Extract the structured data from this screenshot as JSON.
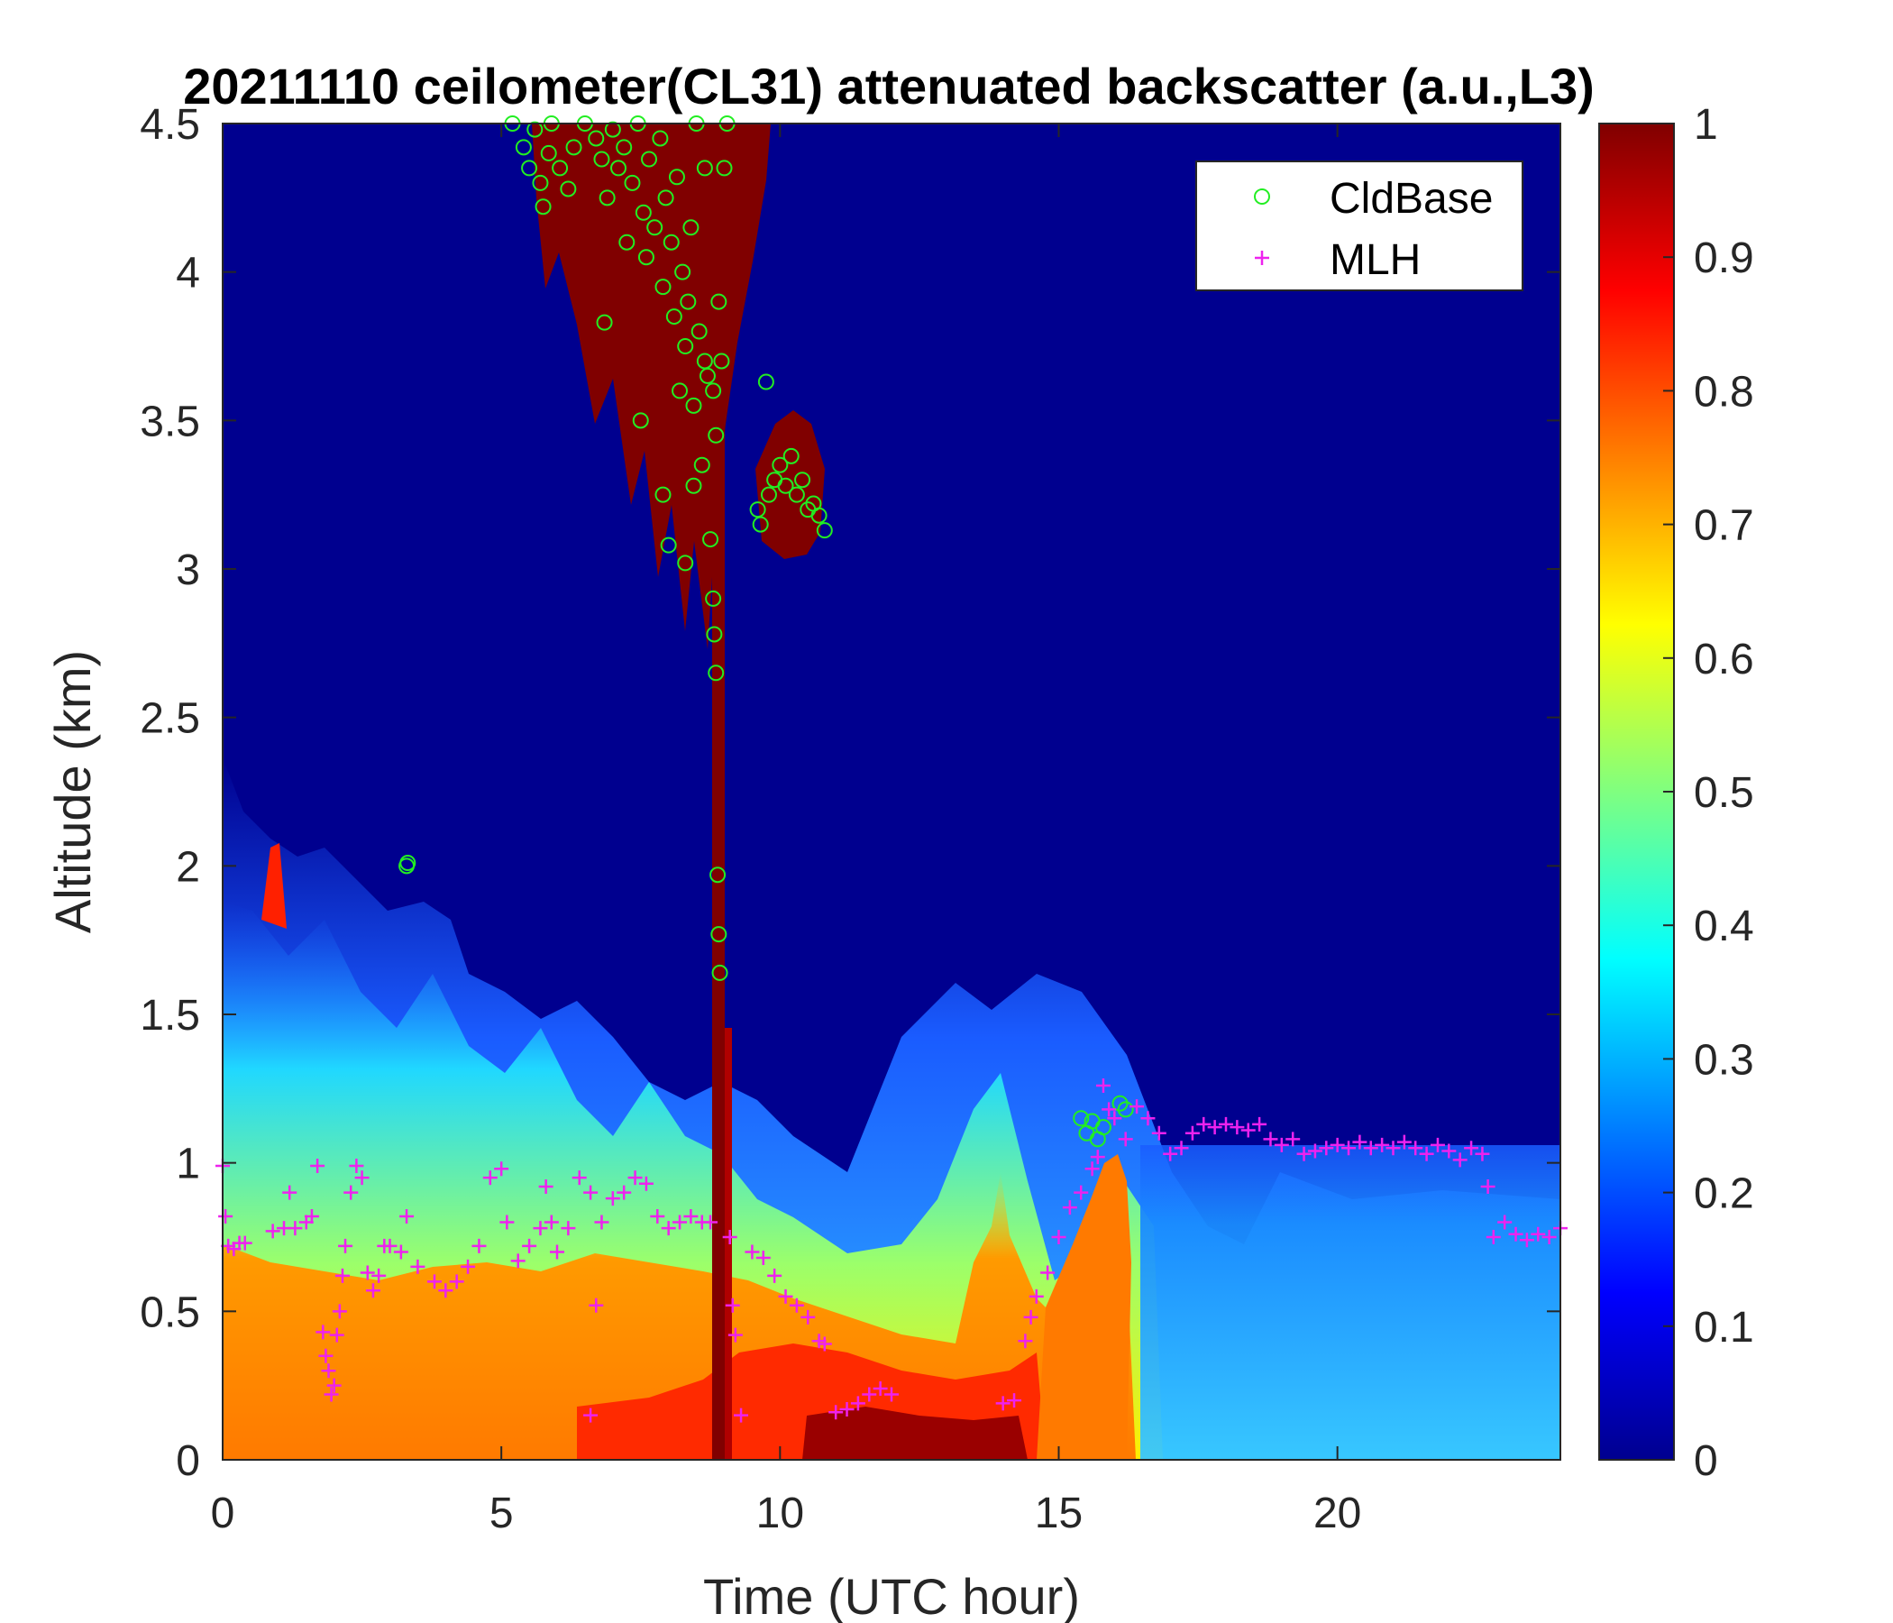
{
  "chart_data": {
    "type": "heatmap",
    "title": "20211110 ceilometer(CL31) attenuated backscatter (a.u.,L3)",
    "xlabel": "Time (UTC hour)",
    "ylabel": "Altitude (km)",
    "xlim": [
      0,
      24
    ],
    "ylim": [
      0,
      4.5
    ],
    "xticks": [
      "0",
      "5",
      "10",
      "15",
      "20"
    ],
    "yticks": [
      "0",
      "0.5",
      "1",
      "1.5",
      "2",
      "2.5",
      "3",
      "3.5",
      "4",
      "4.5"
    ],
    "colorbar": {
      "colormap": "jet",
      "range": [
        0,
        1
      ],
      "ticks": [
        "0",
        "0.1",
        "0.2",
        "0.3",
        "0.4",
        "0.5",
        "0.6",
        "0.7",
        "0.8",
        "0.9",
        "1"
      ]
    },
    "legend": {
      "position": "top-right",
      "entries": [
        {
          "label": "CldBase",
          "marker": "circle",
          "color": "#22ee22"
        },
        {
          "label": "MLH",
          "marker": "plus",
          "color": "#ee22ee"
        }
      ]
    },
    "series": [
      {
        "name": "CldBase",
        "points": [
          [
            5.2,
            4.5
          ],
          [
            5.4,
            4.42
          ],
          [
            5.5,
            4.35
          ],
          [
            5.6,
            4.48
          ],
          [
            5.7,
            4.3
          ],
          [
            5.75,
            4.22
          ],
          [
            5.85,
            4.4
          ],
          [
            5.9,
            4.5
          ],
          [
            6.05,
            4.35
          ],
          [
            6.2,
            4.28
          ],
          [
            6.3,
            4.42
          ],
          [
            6.5,
            4.5
          ],
          [
            6.7,
            4.45
          ],
          [
            6.8,
            4.38
          ],
          [
            6.9,
            4.25
          ],
          [
            7.0,
            4.48
          ],
          [
            7.1,
            4.35
          ],
          [
            7.2,
            4.42
          ],
          [
            7.25,
            4.1
          ],
          [
            7.35,
            4.3
          ],
          [
            7.45,
            4.5
          ],
          [
            7.55,
            4.2
          ],
          [
            7.6,
            4.05
          ],
          [
            7.65,
            4.38
          ],
          [
            7.75,
            4.15
          ],
          [
            7.85,
            4.45
          ],
          [
            7.9,
            3.95
          ],
          [
            7.95,
            4.25
          ],
          [
            8.05,
            4.1
          ],
          [
            8.1,
            3.85
          ],
          [
            8.15,
            4.32
          ],
          [
            8.2,
            3.6
          ],
          [
            8.25,
            4.0
          ],
          [
            8.3,
            3.75
          ],
          [
            8.35,
            3.9
          ],
          [
            8.4,
            4.15
          ],
          [
            8.45,
            3.55
          ],
          [
            8.5,
            4.5
          ],
          [
            8.55,
            3.8
          ],
          [
            8.6,
            3.35
          ],
          [
            8.65,
            4.35
          ],
          [
            8.7,
            3.65
          ],
          [
            8.75,
            3.1
          ],
          [
            8.8,
            2.9
          ],
          [
            8.82,
            2.78
          ],
          [
            8.85,
            3.45
          ],
          [
            8.9,
            3.9
          ],
          [
            8.95,
            3.7
          ],
          [
            9.0,
            4.35
          ],
          [
            9.05,
            4.5
          ],
          [
            6.85,
            3.83
          ],
          [
            7.5,
            3.5
          ],
          [
            7.9,
            3.25
          ],
          [
            8.0,
            3.08
          ],
          [
            8.3,
            3.02
          ],
          [
            8.45,
            3.28
          ],
          [
            8.65,
            3.7
          ],
          [
            8.8,
            3.6
          ],
          [
            8.85,
            2.65
          ],
          [
            8.88,
            1.97
          ],
          [
            8.9,
            1.77
          ],
          [
            8.92,
            1.64
          ],
          [
            3.3,
            2.0
          ],
          [
            3.32,
            2.01
          ],
          [
            9.75,
            3.63
          ],
          [
            9.6,
            3.2
          ],
          [
            9.65,
            3.15
          ],
          [
            9.8,
            3.25
          ],
          [
            9.9,
            3.3
          ],
          [
            10.0,
            3.35
          ],
          [
            10.1,
            3.28
          ],
          [
            10.2,
            3.38
          ],
          [
            10.3,
            3.25
          ],
          [
            10.4,
            3.3
          ],
          [
            10.5,
            3.2
          ],
          [
            10.6,
            3.22
          ],
          [
            10.7,
            3.18
          ],
          [
            10.8,
            3.13
          ],
          [
            15.4,
            1.15
          ],
          [
            15.5,
            1.1
          ],
          [
            15.6,
            1.14
          ],
          [
            15.7,
            1.08
          ],
          [
            15.8,
            1.12
          ],
          [
            16.1,
            1.2
          ],
          [
            16.2,
            1.18
          ]
        ]
      },
      {
        "name": "MLH",
        "points": [
          [
            0.0,
            0.99
          ],
          [
            0.05,
            0.82
          ],
          [
            0.1,
            0.72
          ],
          [
            0.2,
            0.71
          ],
          [
            0.3,
            0.73
          ],
          [
            0.4,
            0.73
          ],
          [
            0.9,
            0.77
          ],
          [
            1.1,
            0.78
          ],
          [
            1.2,
            0.9
          ],
          [
            1.3,
            0.78
          ],
          [
            1.5,
            0.8
          ],
          [
            1.6,
            0.82
          ],
          [
            1.7,
            0.99
          ],
          [
            1.8,
            0.43
          ],
          [
            1.85,
            0.35
          ],
          [
            1.9,
            0.3
          ],
          [
            1.95,
            0.22
          ],
          [
            2.0,
            0.25
          ],
          [
            2.05,
            0.42
          ],
          [
            2.1,
            0.5
          ],
          [
            2.15,
            0.62
          ],
          [
            2.2,
            0.72
          ],
          [
            2.3,
            0.9
          ],
          [
            2.4,
            0.99
          ],
          [
            2.5,
            0.95
          ],
          [
            2.6,
            0.63
          ],
          [
            2.7,
            0.57
          ],
          [
            2.8,
            0.62
          ],
          [
            2.9,
            0.72
          ],
          [
            3.0,
            0.72
          ],
          [
            3.2,
            0.7
          ],
          [
            3.3,
            0.82
          ],
          [
            3.5,
            0.65
          ],
          [
            3.8,
            0.6
          ],
          [
            4.0,
            0.57
          ],
          [
            4.2,
            0.6
          ],
          [
            4.4,
            0.65
          ],
          [
            4.6,
            0.72
          ],
          [
            4.8,
            0.95
          ],
          [
            5.0,
            0.98
          ],
          [
            5.1,
            0.8
          ],
          [
            5.3,
            0.67
          ],
          [
            5.5,
            0.72
          ],
          [
            5.7,
            0.78
          ],
          [
            5.8,
            0.92
          ],
          [
            5.9,
            0.8
          ],
          [
            6.0,
            0.7
          ],
          [
            6.2,
            0.78
          ],
          [
            6.4,
            0.95
          ],
          [
            6.6,
            0.9
          ],
          [
            6.7,
            0.52
          ],
          [
            6.8,
            0.8
          ],
          [
            7.0,
            0.88
          ],
          [
            7.2,
            0.9
          ],
          [
            7.4,
            0.95
          ],
          [
            7.6,
            0.93
          ],
          [
            7.8,
            0.82
          ],
          [
            8.0,
            0.78
          ],
          [
            8.2,
            0.8
          ],
          [
            8.4,
            0.82
          ],
          [
            8.6,
            0.8
          ],
          [
            8.75,
            0.8
          ],
          [
            9.1,
            0.75
          ],
          [
            9.15,
            0.52
          ],
          [
            9.2,
            0.42
          ],
          [
            9.3,
            0.15
          ],
          [
            9.5,
            0.7
          ],
          [
            9.7,
            0.68
          ],
          [
            9.9,
            0.62
          ],
          [
            10.1,
            0.55
          ],
          [
            10.3,
            0.52
          ],
          [
            10.5,
            0.48
          ],
          [
            10.7,
            0.4
          ],
          [
            10.8,
            0.39
          ],
          [
            6.6,
            0.15
          ],
          [
            11.0,
            0.16
          ],
          [
            11.2,
            0.17
          ],
          [
            11.4,
            0.19
          ],
          [
            11.6,
            0.22
          ],
          [
            11.8,
            0.24
          ],
          [
            12.0,
            0.22
          ],
          [
            14.0,
            0.19
          ],
          [
            14.2,
            0.2
          ],
          [
            14.4,
            0.4
          ],
          [
            14.5,
            0.48
          ],
          [
            14.6,
            0.55
          ],
          [
            14.8,
            0.63
          ],
          [
            15.0,
            0.75
          ],
          [
            15.2,
            0.85
          ],
          [
            15.4,
            0.9
          ],
          [
            15.6,
            0.98
          ],
          [
            15.7,
            1.02
          ],
          [
            15.8,
            1.26
          ],
          [
            15.9,
            1.18
          ],
          [
            16.0,
            1.15
          ],
          [
            16.2,
            1.08
          ],
          [
            16.4,
            1.19
          ],
          [
            16.6,
            1.15
          ],
          [
            16.8,
            1.1
          ],
          [
            17.0,
            1.03
          ],
          [
            17.2,
            1.05
          ],
          [
            17.4,
            1.1
          ],
          [
            17.6,
            1.13
          ],
          [
            17.8,
            1.12
          ],
          [
            18.0,
            1.13
          ],
          [
            18.2,
            1.12
          ],
          [
            18.4,
            1.11
          ],
          [
            18.6,
            1.13
          ],
          [
            18.8,
            1.08
          ],
          [
            19.0,
            1.06
          ],
          [
            19.2,
            1.08
          ],
          [
            19.4,
            1.03
          ],
          [
            19.6,
            1.04
          ],
          [
            19.8,
            1.05
          ],
          [
            20.0,
            1.06
          ],
          [
            20.2,
            1.05
          ],
          [
            20.4,
            1.07
          ],
          [
            20.6,
            1.05
          ],
          [
            20.8,
            1.06
          ],
          [
            21.0,
            1.05
          ],
          [
            21.2,
            1.07
          ],
          [
            21.4,
            1.05
          ],
          [
            21.6,
            1.03
          ],
          [
            21.8,
            1.06
          ],
          [
            22.0,
            1.04
          ],
          [
            22.2,
            1.01
          ],
          [
            22.4,
            1.05
          ],
          [
            22.6,
            1.03
          ],
          [
            22.7,
            0.92
          ],
          [
            22.8,
            0.75
          ],
          [
            23.0,
            0.8
          ],
          [
            23.2,
            0.76
          ],
          [
            23.4,
            0.74
          ],
          [
            23.6,
            0.76
          ],
          [
            23.8,
            0.75
          ],
          [
            24.0,
            0.78
          ]
        ]
      }
    ]
  }
}
